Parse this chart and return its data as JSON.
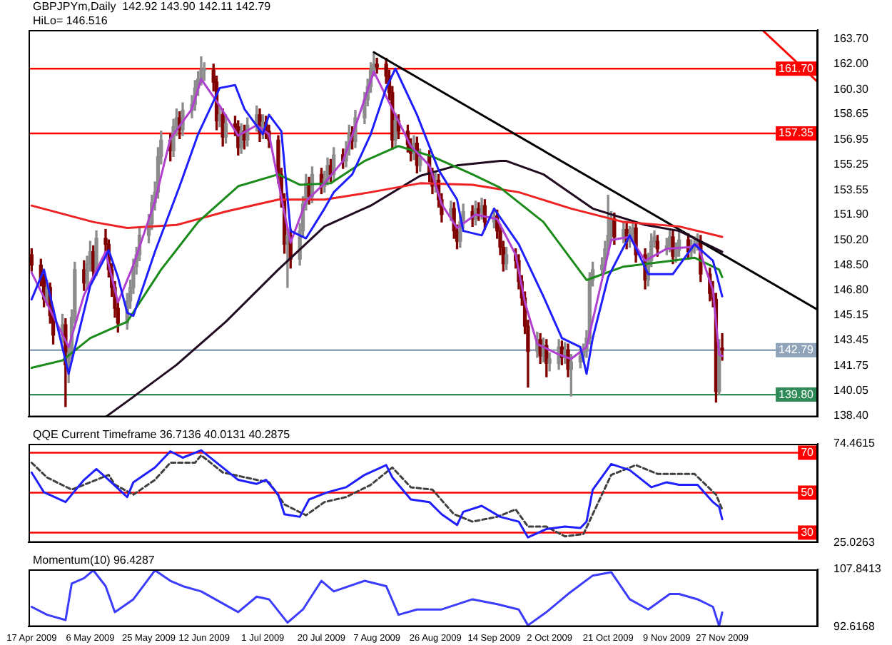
{
  "chart_data": [
    {
      "type": "candlestick",
      "title": "GBPJPYm,Daily  142.92 143.90 142.11 142.79",
      "subtitle": "HiLo= 146.516",
      "marker": "none",
      "tick_labels": "y",
      "xlim": [
        "2009-04-16",
        "2009-12-28"
      ],
      "ylim": [
        138.3,
        164.3
      ],
      "yticks": [
        {
          "value": 163.7,
          "label": "163.70"
        },
        {
          "value": 162,
          "label": "162.00"
        },
        {
          "value": 160.3,
          "label": "160.30"
        },
        {
          "value": 158.65,
          "label": "158.65"
        },
        {
          "value": 156.95,
          "label": "156.95"
        },
        {
          "value": 155.25,
          "label": "155.25"
        },
        {
          "value": 153.55,
          "label": "153.55"
        },
        {
          "value": 151.9,
          "label": "151.90"
        },
        {
          "value": 150.2,
          "label": "150.20"
        },
        {
          "value": 148.5,
          "label": "148.50"
        },
        {
          "value": 146.8,
          "label": "146.80"
        },
        {
          "value": 145.15,
          "label": "145.15"
        },
        {
          "value": 143.45,
          "label": "143.45"
        },
        {
          "value": 141.75,
          "label": "141.75"
        },
        {
          "value": 140.05,
          "label": "140.05"
        },
        {
          "value": 138.4,
          "label": "138.40"
        }
      ],
      "x": [
        "2009-04-17",
        "2009-04-20",
        "2009-04-21",
        "2009-04-22",
        "2009-04-23",
        "2009-04-24",
        "2009-04-27",
        "2009-04-28",
        "2009-04-29",
        "2009-04-30",
        "2009-05-01",
        "2009-05-04",
        "2009-05-05",
        "2009-05-06",
        "2009-05-07",
        "2009-05-08",
        "2009-05-11",
        "2009-05-12",
        "2009-05-13",
        "2009-05-14",
        "2009-05-15",
        "2009-05-18",
        "2009-05-19",
        "2009-05-20",
        "2009-05-21",
        "2009-05-22",
        "2009-05-25",
        "2009-05-26",
        "2009-05-27",
        "2009-05-28",
        "2009-05-29",
        "2009-06-01",
        "2009-06-02",
        "2009-06-03",
        "2009-06-04",
        "2009-06-05",
        "2009-06-08",
        "2009-06-09",
        "2009-06-10",
        "2009-06-11",
        "2009-06-12",
        "2009-06-15",
        "2009-06-16",
        "2009-06-17",
        "2009-06-18",
        "2009-06-19",
        "2009-06-22",
        "2009-06-23",
        "2009-06-24",
        "2009-06-25",
        "2009-06-26",
        "2009-06-29",
        "2009-06-30",
        "2009-07-01",
        "2009-07-02",
        "2009-07-03",
        "2009-07-06",
        "2009-07-07",
        "2009-07-08",
        "2009-07-09",
        "2009-07-10",
        "2009-07-13",
        "2009-07-14",
        "2009-07-15",
        "2009-07-16",
        "2009-07-17",
        "2009-07-20",
        "2009-07-21",
        "2009-07-22",
        "2009-07-23",
        "2009-07-24",
        "2009-07-27",
        "2009-07-28",
        "2009-07-29",
        "2009-07-30",
        "2009-07-31",
        "2009-08-03",
        "2009-08-04",
        "2009-08-05",
        "2009-08-06",
        "2009-08-07",
        "2009-08-10",
        "2009-08-11",
        "2009-08-12",
        "2009-08-13",
        "2009-08-14",
        "2009-08-17",
        "2009-08-18",
        "2009-08-19",
        "2009-08-20",
        "2009-08-21",
        "2009-08-24",
        "2009-08-25",
        "2009-08-26",
        "2009-08-27",
        "2009-08-28",
        "2009-08-31",
        "2009-09-01",
        "2009-09-02",
        "2009-09-03",
        "2009-09-04",
        "2009-09-07",
        "2009-09-08",
        "2009-09-09",
        "2009-09-10",
        "2009-09-11",
        "2009-09-14",
        "2009-09-15",
        "2009-09-16",
        "2009-09-17",
        "2009-09-18",
        "2009-09-21",
        "2009-09-22",
        "2009-09-23",
        "2009-09-24",
        "2009-09-25",
        "2009-09-28",
        "2009-09-29",
        "2009-09-30",
        "2009-10-01",
        "2009-10-02",
        "2009-10-05",
        "2009-10-06",
        "2009-10-07",
        "2009-10-08",
        "2009-10-09",
        "2009-10-12",
        "2009-10-13",
        "2009-10-14",
        "2009-10-15",
        "2009-10-16",
        "2009-10-19",
        "2009-10-20",
        "2009-10-21",
        "2009-10-22",
        "2009-10-23",
        "2009-10-26",
        "2009-10-27",
        "2009-10-28",
        "2009-10-29",
        "2009-10-30",
        "2009-11-02",
        "2009-11-03",
        "2009-11-04",
        "2009-11-05",
        "2009-11-06",
        "2009-11-09",
        "2009-11-10",
        "2009-11-11",
        "2009-11-12",
        "2009-11-13",
        "2009-11-16",
        "2009-11-17",
        "2009-11-18",
        "2009-11-19",
        "2009-11-20",
        "2009-11-23",
        "2009-11-24",
        "2009-11-25",
        "2009-11-26",
        "2009-11-27"
      ],
      "colors": [
        "#800000",
        "#800000",
        "#800000",
        "#8c8c8c",
        "#800000",
        "#800000",
        "#8c8c8c",
        "#800000",
        "#8c8c8c",
        "#8c8c8c",
        "#8c8c8c",
        "#800000",
        "#8c8c8c",
        "#8c8c8c",
        "#800000",
        "#8c8c8c",
        "#800000",
        "#800000",
        "#800000",
        "#800000",
        "#800000",
        "#8c8c8c",
        "#8c8c8c",
        "#8c8c8c",
        "#8c8c8c",
        "#8c8c8c",
        "#8c8c8c",
        "#8c8c8c",
        "#8c8c8c",
        "#8c8c8c",
        "#8c8c8c",
        "#800000",
        "#8c8c8c",
        "#8c8c8c",
        "#800000",
        "#8c8c8c",
        "#8c8c8c",
        "#8c8c8c",
        "#8c8c8c",
        "#8c8c8c",
        "#8c8c8c",
        "#800000",
        "#800000",
        "#8c8c8c",
        "#800000",
        "#8c8c8c",
        "#800000",
        "#800000",
        "#8c8c8c",
        "#800000",
        "#8c8c8c",
        "#8c8c8c",
        "#800000",
        "#8c8c8c",
        "#800000",
        "#800000",
        "#800000",
        "#800000",
        "#800000",
        "#8c8c8c",
        "#800000",
        "#8c8c8c",
        "#8c8c8c",
        "#8c8c8c",
        "#800000",
        "#8c8c8c",
        "#800000",
        "#8c8c8c",
        "#8c8c8c",
        "#800000",
        "#8c8c8c",
        "#800000",
        "#8c8c8c",
        "#8c8c8c",
        "#800000",
        "#8c8c8c",
        "#8c8c8c",
        "#8c8c8c",
        "#8c8c8c",
        "#8c8c8c",
        "#800000",
        "#800000",
        "#800000",
        "#800000",
        "#8c8c8c",
        "#800000",
        "#800000",
        "#800000",
        "#8c8c8c",
        "#800000",
        "#8c8c8c",
        "#800000",
        "#800000",
        "#8c8c8c",
        "#800000",
        "#800000",
        "#8c8c8c",
        "#800000",
        "#800000",
        "#8c8c8c",
        "#8c8c8c",
        "#800000",
        "#8c8c8c",
        "#800000",
        "#8c8c8c",
        "#800000",
        "#8c8c8c",
        "#800000",
        "#800000",
        "#800000",
        "#8c8c8c",
        "#800000",
        "#800000",
        "#800000",
        "#800000",
        "#800000",
        "#8c8c8c",
        "#800000",
        "#8c8c8c",
        "#800000",
        "#8c8c8c",
        "#8c8c8c",
        "#800000",
        "#8c8c8c",
        "#800000",
        "#8c8c8c",
        "#8c8c8c",
        "#8c8c8c",
        "#8c8c8c",
        "#8c8c8c",
        "#8c8c8c",
        "#8c8c8c",
        "#8c8c8c",
        "#8c8c8c",
        "#8c8c8c",
        "#800000",
        "#8c8c8c",
        "#800000",
        "#8c8c8c",
        "#8c8c8c",
        "#800000",
        "#800000",
        "#8c8c8c",
        "#8c8c8c",
        "#8c8c8c",
        "#800000",
        "#8c8c8c",
        "#8c8c8c",
        "#800000",
        "#8c8c8c",
        "#8c8c8c",
        "#800000",
        "#8c8c8c",
        "#8c8c8c",
        "#8c8c8c",
        "#800000",
        "#800000",
        "#800000",
        "#800000",
        "#8c8c8c",
        "#800000"
      ],
      "ohlc": [
        [
          149.2,
          149.6,
          148.1,
          148.5
        ],
        [
          148.5,
          148.9,
          147.1,
          147.6
        ],
        [
          147.6,
          147.9,
          145.7,
          146.2
        ],
        [
          146.2,
          147.5,
          145.8,
          147.0
        ],
        [
          147.0,
          147.3,
          144.6,
          145.1
        ],
        [
          145.1,
          145.6,
          143.2,
          143.8
        ],
        [
          143.8,
          145.2,
          143.3,
          144.5
        ],
        [
          144.5,
          144.9,
          139.0,
          141.8
        ],
        [
          141.8,
          143.1,
          140.6,
          142.6
        ],
        [
          142.6,
          145.5,
          142.2,
          145.0
        ],
        [
          145.0,
          148.7,
          144.6,
          148.2
        ],
        [
          148.2,
          148.8,
          146.8,
          147.3
        ],
        [
          147.3,
          149.1,
          146.9,
          148.6
        ],
        [
          148.6,
          150.1,
          148.1,
          149.4
        ],
        [
          149.4,
          149.8,
          147.6,
          148.1
        ],
        [
          148.1,
          150.8,
          147.8,
          150.3
        ],
        [
          150.3,
          150.9,
          149.3,
          149.9
        ],
        [
          149.9,
          150.2,
          147.7,
          148.2
        ],
        [
          148.2,
          148.6,
          146.4,
          147.0
        ],
        [
          147.0,
          147.4,
          145.0,
          145.6
        ],
        [
          145.6,
          146.0,
          144.0,
          144.6
        ],
        [
          144.6,
          146.6,
          144.2,
          146.1
        ],
        [
          146.1,
          147.5,
          145.6,
          147.0
        ],
        [
          147.0,
          148.9,
          146.6,
          148.4
        ],
        [
          148.4,
          149.7,
          147.9,
          149.2
        ],
        [
          149.2,
          151.0,
          148.8,
          150.5
        ],
        [
          150.5,
          151.9,
          150.0,
          151.3
        ],
        [
          151.3,
          153.2,
          150.9,
          152.7
        ],
        [
          152.7,
          154.1,
          152.2,
          153.4
        ],
        [
          153.4,
          156.4,
          153.0,
          155.8
        ],
        [
          155.8,
          157.5,
          155.3,
          156.9
        ],
        [
          156.9,
          157.3,
          155.5,
          156.2
        ],
        [
          156.2,
          158.3,
          155.8,
          157.8
        ],
        [
          157.8,
          159.0,
          157.2,
          158.4
        ],
        [
          158.4,
          158.8,
          157.0,
          157.6
        ],
        [
          157.6,
          159.4,
          157.2,
          158.9
        ],
        [
          158.9,
          159.9,
          158.4,
          159.3
        ],
        [
          159.3,
          160.9,
          158.9,
          160.4
        ],
        [
          160.4,
          161.5,
          159.9,
          161.0
        ],
        [
          161.0,
          162.5,
          160.6,
          161.6
        ],
        [
          161.6,
          162.1,
          160.9,
          161.6
        ],
        [
          161.6,
          162.0,
          160.2,
          160.8
        ],
        [
          160.8,
          161.2,
          157.6,
          158.2
        ],
        [
          158.2,
          159.2,
          157.8,
          158.6
        ],
        [
          158.6,
          159.0,
          156.5,
          157.1
        ],
        [
          157.1,
          158.6,
          156.7,
          158.0
        ],
        [
          158.0,
          158.5,
          157.2,
          157.8
        ],
        [
          157.8,
          158.2,
          155.9,
          156.4
        ],
        [
          156.4,
          158.0,
          156.0,
          157.5
        ],
        [
          157.5,
          157.9,
          156.3,
          156.9
        ],
        [
          156.9,
          158.4,
          156.5,
          157.9
        ],
        [
          157.9,
          159.2,
          157.5,
          158.6
        ],
        [
          158.6,
          159.0,
          156.8,
          157.4
        ],
        [
          157.4,
          158.6,
          157.0,
          158.1
        ],
        [
          158.1,
          158.5,
          157.0,
          157.5
        ],
        [
          157.5,
          157.9,
          156.4,
          156.9
        ],
        [
          156.9,
          157.2,
          154.0,
          154.6
        ],
        [
          154.6,
          155.0,
          152.4,
          152.9
        ],
        [
          152.9,
          153.3,
          149.3,
          149.9
        ],
        [
          149.9,
          151.0,
          147.0,
          150.5
        ],
        [
          150.5,
          150.9,
          148.3,
          148.9
        ],
        [
          148.9,
          151.3,
          148.5,
          150.8
        ],
        [
          150.8,
          153.1,
          150.4,
          152.6
        ],
        [
          152.6,
          154.6,
          152.2,
          154.0
        ],
        [
          154.0,
          154.4,
          152.6,
          153.1
        ],
        [
          153.1,
          155.1,
          152.7,
          154.6
        ],
        [
          154.6,
          155.0,
          153.3,
          153.8
        ],
        [
          153.8,
          154.8,
          153.4,
          154.3
        ],
        [
          154.3,
          155.7,
          153.9,
          155.2
        ],
        [
          155.2,
          155.6,
          154.1,
          154.6
        ],
        [
          154.6,
          156.4,
          154.2,
          155.9
        ],
        [
          155.9,
          156.3,
          155.0,
          155.5
        ],
        [
          155.5,
          156.8,
          155.1,
          156.3
        ],
        [
          156.3,
          157.9,
          155.9,
          157.4
        ],
        [
          157.4,
          157.8,
          156.3,
          156.8
        ],
        [
          156.8,
          158.9,
          156.4,
          158.4
        ],
        [
          158.4,
          160.1,
          158.0,
          159.6
        ],
        [
          159.6,
          161.0,
          159.2,
          160.5
        ],
        [
          160.5,
          162.1,
          160.1,
          161.6
        ],
        [
          161.6,
          162.7,
          161.2,
          162.0
        ],
        [
          162.0,
          162.4,
          161.4,
          161.8
        ],
        [
          162.0,
          162.4,
          160.7,
          161.2
        ],
        [
          161.2,
          161.6,
          159.6,
          160.1
        ],
        [
          160.1,
          160.5,
          156.3,
          156.9
        ],
        [
          156.9,
          158.7,
          156.5,
          158.2
        ],
        [
          158.2,
          158.6,
          157.0,
          157.5
        ],
        [
          157.5,
          157.9,
          156.1,
          156.6
        ],
        [
          156.6,
          157.0,
          155.5,
          156.0
        ],
        [
          156.0,
          157.2,
          155.6,
          156.7
        ],
        [
          156.7,
          157.1,
          154.7,
          155.2
        ],
        [
          155.2,
          156.3,
          154.8,
          155.8
        ],
        [
          155.8,
          156.2,
          154.1,
          154.6
        ],
        [
          154.6,
          155.0,
          153.3,
          153.8
        ],
        [
          153.8,
          154.7,
          153.4,
          154.2
        ],
        [
          154.2,
          154.6,
          152.4,
          152.9
        ],
        [
          152.9,
          153.3,
          151.4,
          151.9
        ],
        [
          151.9,
          152.8,
          151.5,
          152.3
        ],
        [
          152.3,
          152.7,
          150.3,
          150.8
        ],
        [
          150.8,
          151.2,
          149.6,
          150.1
        ],
        [
          150.1,
          151.9,
          149.7,
          151.4
        ],
        [
          151.4,
          152.6,
          151.0,
          152.1
        ],
        [
          152.1,
          152.5,
          151.1,
          151.6
        ],
        [
          151.6,
          152.8,
          151.2,
          152.3
        ],
        [
          152.3,
          152.7,
          151.5,
          152.0
        ],
        [
          152.0,
          153.0,
          151.6,
          152.5
        ],
        [
          152.5,
          152.9,
          150.9,
          151.4
        ],
        [
          151.4,
          152.3,
          151.0,
          151.8
        ],
        [
          151.8,
          152.2,
          150.3,
          150.8
        ],
        [
          150.8,
          151.2,
          149.2,
          149.7
        ],
        [
          149.7,
          150.1,
          148.1,
          148.6
        ],
        [
          148.6,
          149.7,
          148.2,
          149.2
        ],
        [
          149.2,
          149.6,
          148.3,
          148.8
        ],
        [
          148.8,
          149.2,
          146.9,
          147.4
        ],
        [
          147.4,
          147.8,
          145.8,
          146.3
        ],
        [
          146.3,
          146.7,
          143.9,
          144.4
        ],
        [
          144.4,
          144.8,
          140.3,
          142.7
        ],
        [
          142.7,
          144.0,
          142.3,
          143.5
        ],
        [
          143.5,
          143.9,
          141.9,
          142.4
        ],
        [
          142.4,
          143.6,
          142.0,
          143.1
        ],
        [
          143.1,
          143.5,
          141.0,
          141.9
        ],
        [
          141.9,
          142.6,
          141.4,
          142.2
        ],
        [
          141.9,
          143.5,
          141.5,
          143.0
        ],
        [
          143.0,
          143.4,
          141.8,
          142.3
        ],
        [
          142.3,
          143.3,
          141.9,
          142.8
        ],
        [
          142.8,
          143.2,
          141.0,
          141.5
        ],
        [
          141.5,
          142.5,
          139.7,
          142.0
        ],
        [
          142.0,
          142.9,
          141.6,
          142.4
        ],
        [
          142.4,
          143.2,
          142.0,
          142.7
        ],
        [
          142.7,
          144.1,
          142.3,
          143.6
        ],
        [
          143.6,
          148.0,
          143.2,
          147.5
        ],
        [
          147.5,
          148.7,
          147.1,
          148.2
        ],
        [
          148.2,
          149.0,
          147.8,
          148.5
        ],
        [
          148.5,
          150.1,
          148.1,
          149.6
        ],
        [
          149.6,
          153.2,
          149.2,
          150.5
        ],
        [
          150.5,
          152.1,
          150.1,
          151.6
        ],
        [
          151.6,
          152.0,
          149.9,
          150.4
        ],
        [
          150.4,
          151.4,
          150.0,
          150.9
        ],
        [
          150.9,
          151.3,
          149.6,
          150.1
        ],
        [
          150.1,
          151.1,
          149.7,
          150.6
        ],
        [
          150.6,
          151.5,
          150.2,
          151.0
        ],
        [
          151.0,
          151.4,
          148.7,
          149.2
        ],
        [
          149.2,
          149.6,
          146.9,
          147.5
        ],
        [
          147.5,
          149.3,
          147.1,
          148.8
        ],
        [
          148.8,
          150.6,
          148.4,
          150.1
        ],
        [
          150.1,
          150.8,
          149.7,
          150.4
        ],
        [
          150.1,
          150.5,
          149.1,
          149.6
        ],
        [
          149.6,
          150.3,
          149.2,
          149.8
        ],
        [
          149.8,
          150.9,
          149.4,
          150.4
        ],
        [
          150.4,
          150.8,
          148.6,
          149.1
        ],
        [
          149.1,
          150.0,
          148.7,
          149.5
        ],
        [
          149.5,
          150.7,
          149.1,
          150.2
        ],
        [
          150.2,
          150.6,
          148.9,
          149.4
        ],
        [
          149.4,
          150.2,
          149.0,
          149.7
        ],
        [
          149.7,
          150.4,
          149.3,
          149.9
        ],
        [
          149.9,
          150.6,
          149.5,
          150.1
        ],
        [
          150.1,
          150.5,
          147.4,
          147.9
        ],
        [
          147.9,
          148.3,
          146.1,
          146.6
        ],
        [
          146.6,
          147.4,
          145.7,
          146.2
        ],
        [
          146.2,
          146.6,
          139.3,
          140.0
        ],
        [
          140.0,
          143.5,
          139.8,
          142.92
        ],
        [
          142.92,
          143.9,
          142.11,
          142.79
        ]
      ],
      "series": [
        {
          "type": "line",
          "color": "#1e1eff",
          "x": [
            "2009-04-17",
            "2009-04-21",
            "2009-04-29",
            "2009-05-06",
            "2009-05-12",
            "2009-05-15",
            "2009-05-18",
            "2009-05-20",
            "2009-05-27",
            "2009-06-04",
            "2009-06-10",
            "2009-06-17",
            "2009-06-22",
            "2009-06-25",
            "2009-07-01",
            "2009-07-03",
            "2009-07-07",
            "2009-07-10",
            "2009-07-15",
            "2009-07-21",
            "2009-07-24",
            "2009-07-30",
            "2009-08-05",
            "2009-08-10",
            "2009-08-13",
            "2009-08-20",
            "2009-08-27",
            "2009-09-02",
            "2009-09-04",
            "2009-09-10",
            "2009-09-14",
            "2009-09-16",
            "2009-09-22",
            "2009-09-30",
            "2009-10-06",
            "2009-10-12",
            "2009-10-14",
            "2009-10-16",
            "2009-10-21",
            "2009-10-28",
            "2009-11-03",
            "2009-11-11",
            "2009-11-18",
            "2009-11-24",
            "2009-11-27"
          ],
          "values": [
            146.2,
            148.2,
            141.2,
            147.1,
            149.5,
            147.7,
            145.3,
            145.1,
            149.4,
            153.8,
            157.3,
            160.4,
            160.6,
            159.0,
            157.3,
            158.6,
            157.5,
            150.8,
            150.3,
            152.3,
            153.4,
            154.6,
            157.3,
            160.4,
            161.7,
            158.6,
            154.9,
            152.9,
            150.8,
            150.5,
            152.3,
            151.7,
            149.9,
            146.4,
            143.6,
            143.0,
            141.2,
            143.6,
            147.7,
            150.5,
            147.9,
            147.9,
            149.9,
            148.8,
            146.4
          ]
        },
        {
          "type": "line",
          "color": "#b040d0",
          "x": [
            "2009-04-17",
            "2009-04-23",
            "2009-04-29",
            "2009-05-04",
            "2009-05-11",
            "2009-05-15",
            "2009-05-20",
            "2009-05-27",
            "2009-06-01",
            "2009-06-08",
            "2009-06-11",
            "2009-06-17",
            "2009-06-23",
            "2009-06-29",
            "2009-07-03",
            "2009-07-08",
            "2009-07-10",
            "2009-07-15",
            "2009-07-21",
            "2009-07-27",
            "2009-07-31",
            "2009-08-06",
            "2009-08-12",
            "2009-08-18",
            "2009-08-24",
            "2009-08-28",
            "2009-09-02",
            "2009-09-08",
            "2009-09-15",
            "2009-09-21",
            "2009-09-24",
            "2009-09-28",
            "2009-10-05",
            "2009-10-09",
            "2009-10-14",
            "2009-10-19",
            "2009-10-22",
            "2009-10-28",
            "2009-11-02",
            "2009-11-09",
            "2009-11-16",
            "2009-11-19",
            "2009-11-24",
            "2009-11-26",
            "2009-11-27"
          ],
          "values": [
            148.0,
            145.5,
            143.0,
            146.5,
            149.4,
            146.0,
            148.5,
            152.8,
            157.0,
            159.0,
            161.0,
            159.2,
            157.2,
            157.9,
            157.3,
            152.0,
            150.0,
            152.8,
            154.0,
            155.5,
            157.8,
            161.5,
            159.0,
            156.5,
            155.2,
            152.6,
            151.0,
            151.9,
            151.6,
            149.2,
            146.0,
            143.2,
            142.5,
            142.2,
            143.0,
            147.5,
            150.2,
            150.4,
            148.8,
            149.6,
            149.7,
            149.9,
            146.8,
            142.5,
            142.4
          ]
        },
        {
          "type": "line",
          "color": "#1a8a1a",
          "x": [
            "2009-04-17",
            "2009-04-27",
            "2009-05-06",
            "2009-05-18",
            "2009-05-29",
            "2009-06-10",
            "2009-06-23",
            "2009-07-06",
            "2009-07-13",
            "2009-07-23",
            "2009-08-03",
            "2009-08-14",
            "2009-08-25",
            "2009-09-07",
            "2009-09-16",
            "2009-09-30",
            "2009-10-14",
            "2009-10-26",
            "2009-11-11",
            "2009-11-18",
            "2009-11-26",
            "2009-11-27"
          ],
          "values": [
            141.6,
            142.1,
            143.6,
            144.7,
            148.2,
            151.4,
            153.8,
            154.6,
            153.9,
            154.0,
            155.5,
            156.5,
            155.8,
            154.6,
            153.7,
            151.4,
            147.5,
            148.4,
            148.8,
            149.0,
            148.2,
            147.7
          ]
        },
        {
          "type": "line",
          "color": "#ee2222",
          "x": [
            "2009-04-17",
            "2009-05-07",
            "2009-05-18",
            "2009-06-03",
            "2009-06-19",
            "2009-07-06",
            "2009-07-21",
            "2009-08-05",
            "2009-08-21",
            "2009-09-07",
            "2009-09-16",
            "2009-09-22",
            "2009-10-09",
            "2009-10-26",
            "2009-11-13",
            "2009-11-27"
          ],
          "values": [
            152.5,
            151.4,
            151.0,
            151.2,
            152.1,
            152.9,
            152.9,
            153.4,
            154.0,
            153.9,
            153.6,
            153.4,
            152.3,
            151.4,
            151.1,
            150.4
          ]
        },
        {
          "type": "line",
          "color": "#200a20",
          "x": [
            "2009-05-11",
            "2009-05-19",
            "2009-06-03",
            "2009-06-19",
            "2009-07-06",
            "2009-07-21",
            "2009-08-05",
            "2009-08-21",
            "2009-09-02",
            "2009-09-16",
            "2009-09-18",
            "2009-09-30",
            "2009-10-16",
            "2009-11-02",
            "2009-11-13",
            "2009-11-27"
          ],
          "values": [
            138.3,
            139.5,
            141.8,
            144.7,
            148.2,
            151.1,
            152.5,
            154.5,
            155.2,
            155.5,
            155.5,
            154.6,
            152.3,
            151.2,
            150.8,
            149.4
          ]
        },
        {
          "type": "line",
          "color": "#000000",
          "x": [
            "2009-08-06",
            "2009-12-28"
          ],
          "values": [
            162.8,
            145.5
          ]
        },
        {
          "type": "line",
          "color": "#ff0000",
          "x": [
            "2009-12-10",
            "2009-12-28"
          ],
          "values": [
            164.3,
            160.8
          ]
        }
      ],
      "ref_lines": [
        {
          "axis": "y",
          "value": 161.7,
          "label": "161.70",
          "color": "#ff0000"
        },
        {
          "axis": "y",
          "value": 157.35,
          "label": "157.35",
          "color": "#ff0000"
        },
        {
          "axis": "y",
          "value": 142.79,
          "label": "142.79",
          "color": "#8fa4b8"
        },
        {
          "axis": "y",
          "value": 139.8,
          "label": "139.80",
          "color": "#2e8b57"
        }
      ]
    },
    {
      "type": "line",
      "title": "QQE Current Timeframe 36.7136 40.0131 40.2875",
      "marker": "none",
      "tick_labels": "y",
      "xlim": [
        "2009-04-16",
        "2009-12-28"
      ],
      "ylim": [
        25.0263,
        74.4615
      ],
      "yticks": [
        74.4615,
        25.0263
      ],
      "series": [
        {
          "color": "#1e1eff",
          "x": [
            "2009-04-17",
            "2009-04-21",
            "2009-04-28",
            "2009-05-04",
            "2009-05-08",
            "2009-05-12",
            "2009-05-18",
            "2009-05-20",
            "2009-05-27",
            "2009-06-01",
            "2009-06-05",
            "2009-06-11",
            "2009-06-17",
            "2009-06-23",
            "2009-06-29",
            "2009-07-02",
            "2009-07-06",
            "2009-07-08",
            "2009-07-13",
            "2009-07-16",
            "2009-07-22",
            "2009-07-28",
            "2009-08-03",
            "2009-08-10",
            "2009-08-12",
            "2009-08-18",
            "2009-08-24",
            "2009-08-28",
            "2009-09-02",
            "2009-09-04",
            "2009-09-10",
            "2009-09-16",
            "2009-09-22",
            "2009-09-25",
            "2009-10-01",
            "2009-10-07",
            "2009-10-12",
            "2009-10-14",
            "2009-10-16",
            "2009-10-22",
            "2009-10-28",
            "2009-11-04",
            "2009-11-09",
            "2009-11-13",
            "2009-11-19",
            "2009-11-24",
            "2009-11-26",
            "2009-11-27"
          ],
          "values": [
            60.1,
            50.2,
            45.3,
            56.4,
            61.8,
            56.4,
            47.8,
            55.2,
            62.6,
            70.7,
            67.5,
            71.2,
            63.8,
            56.4,
            54.4,
            56.4,
            49.0,
            39.2,
            37.9,
            46.6,
            50.2,
            52.7,
            58.9,
            63.8,
            57.6,
            46.6,
            45.3,
            39.2,
            33.8,
            40.4,
            43.4,
            37.9,
            35.5,
            27.6,
            31.8,
            33.0,
            32.3,
            35.5,
            51.5,
            64.3,
            61.3,
            52.7,
            55.2,
            53.9,
            53.9,
            45.3,
            42.8,
            36.7
          ]
        },
        {
          "color": "#404040",
          "line_style": "dashed",
          "x": [
            "2009-04-17",
            "2009-04-22",
            "2009-04-30",
            "2009-05-06",
            "2009-05-12",
            "2009-05-14",
            "2009-05-20",
            "2009-05-27",
            "2009-06-01",
            "2009-06-09",
            "2009-06-11",
            "2009-06-18",
            "2009-06-29",
            "2009-07-03",
            "2009-07-08",
            "2009-07-15",
            "2009-07-21",
            "2009-07-28",
            "2009-08-05",
            "2009-08-12",
            "2009-08-18",
            "2009-08-25",
            "2009-09-01",
            "2009-09-07",
            "2009-09-15",
            "2009-09-21",
            "2009-09-25",
            "2009-10-01",
            "2009-10-07",
            "2009-10-13",
            "2009-10-16",
            "2009-10-22",
            "2009-10-30",
            "2009-11-06",
            "2009-11-18",
            "2009-11-25",
            "2009-11-27"
          ],
          "values": [
            65.0,
            57.6,
            51.5,
            55.2,
            58.9,
            54.0,
            49.0,
            56.4,
            65.0,
            65.0,
            68.7,
            60.1,
            56.4,
            55.2,
            44.1,
            38.7,
            45.3,
            47.8,
            53.9,
            62.6,
            52.7,
            51.5,
            39.2,
            35.5,
            37.9,
            41.6,
            33.0,
            33.0,
            28.1,
            29.3,
            39.2,
            58.9,
            63.8,
            59.4,
            59.4,
            49.0,
            41.6
          ]
        }
      ],
      "ref_lines": [
        {
          "axis": "y",
          "value": 70,
          "label": "70",
          "color": "#ff0000"
        },
        {
          "axis": "y",
          "value": 50,
          "label": "50",
          "color": "#ff0000"
        },
        {
          "axis": "y",
          "value": 30,
          "label": "30",
          "color": "#ff0000"
        }
      ]
    },
    {
      "type": "line",
      "title": "Momentum(10) 96.4287",
      "marker": "none",
      "xlim": [
        "2009-04-16",
        "2009-12-28"
      ],
      "ylim": [
        92.6168,
        107.8413
      ],
      "yticks": [
        107.8413,
        92.6168
      ],
      "xticks": [
        {
          "value": "2009-04-17",
          "label": "17 Apr 2009"
        },
        {
          "value": "2009-05-06",
          "label": "6 May 2009"
        },
        {
          "value": "2009-05-25",
          "label": "25 May 2009"
        },
        {
          "value": "2009-06-12",
          "label": "12 Jun 2009"
        },
        {
          "value": "2009-07-01",
          "label": "1 Jul 2009"
        },
        {
          "value": "2009-07-20",
          "label": "20 Jul 2009"
        },
        {
          "value": "2009-08-07",
          "label": "7 Aug 2009"
        },
        {
          "value": "2009-08-26",
          "label": "26 Aug 2009"
        },
        {
          "value": "2009-09-14",
          "label": "14 Sep 2009"
        },
        {
          "value": "2009-10-02",
          "label": "2 Oct 2009"
        },
        {
          "value": "2009-10-21",
          "label": "21 Oct 2009"
        },
        {
          "value": "2009-11-09",
          "label": "9 Nov 2009"
        },
        {
          "value": "2009-11-27",
          "label": "27 Nov 2009"
        }
      ],
      "series": [
        {
          "color": "#3c3cff",
          "x": [
            "2009-04-17",
            "2009-04-22",
            "2009-04-28",
            "2009-04-30",
            "2009-05-04",
            "2009-05-07",
            "2009-05-11",
            "2009-05-14",
            "2009-05-20",
            "2009-05-27",
            "2009-06-01",
            "2009-06-05",
            "2009-06-11",
            "2009-06-23",
            "2009-06-29",
            "2009-07-03",
            "2009-07-09",
            "2009-07-14",
            "2009-07-20",
            "2009-07-24",
            "2009-08-03",
            "2009-08-10",
            "2009-08-14",
            "2009-08-20",
            "2009-08-28",
            "2009-09-07",
            "2009-09-15",
            "2009-09-22",
            "2009-09-25",
            "2009-10-01",
            "2009-10-08",
            "2009-10-16",
            "2009-10-22",
            "2009-10-28",
            "2009-11-03",
            "2009-11-10",
            "2009-11-13",
            "2009-11-19",
            "2009-11-24",
            "2009-11-26",
            "2009-11-27"
          ],
          "values": [
            97.9,
            95.8,
            94.4,
            104.1,
            105.5,
            107.6,
            103.4,
            96.5,
            99.9,
            107.6,
            104.8,
            103.4,
            102.0,
            96.5,
            100.6,
            99.9,
            93.7,
            97.2,
            104.8,
            102.0,
            104.8,
            103.4,
            95.8,
            97.2,
            97.2,
            99.9,
            98.6,
            97.2,
            93.0,
            96.5,
            101.3,
            106.2,
            107.1,
            99.9,
            97.2,
            101.3,
            101.3,
            99.9,
            97.9,
            92.8,
            96.4
          ]
        }
      ]
    }
  ]
}
